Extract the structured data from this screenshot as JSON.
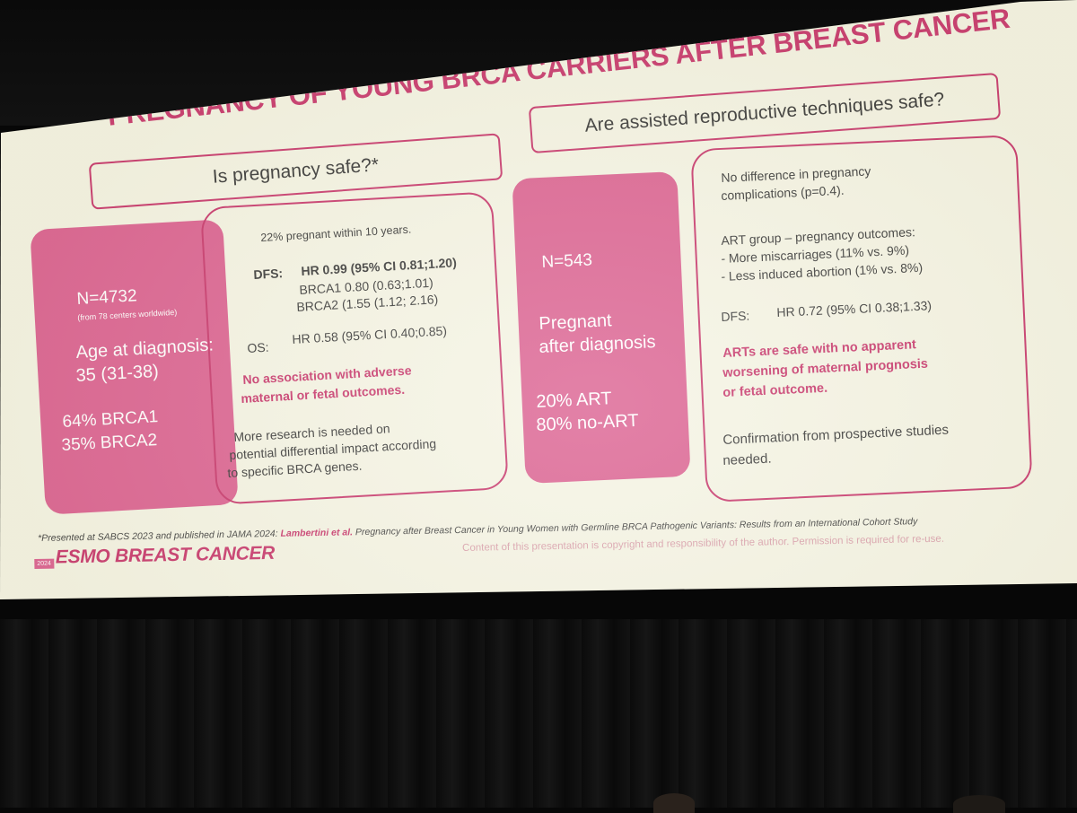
{
  "title": "PREGNANCY OF YOUNG BRCA CARRIERS AFTER BREAST CANCER",
  "left": {
    "header": "Is pregnancy safe?*",
    "cohort": {
      "n": "N=4732",
      "centers": "(from 78 centers worldwide)",
      "age_label": "Age at diagnosis:",
      "age_value": "35 (31-38)",
      "brca1": "64% BRCA1",
      "brca2": "35% BRCA2"
    },
    "findings": {
      "pregnant": "22% pregnant within 10 years.",
      "dfs_label": "DFS:",
      "dfs_hr": "HR 0.99 (95% CI 0.81;1.20)",
      "dfs_brca1": "BRCA1 0.80 (0.63;1.01)",
      "dfs_brca2": "BRCA2 (1.55 (1.12; 2.16)",
      "os_label": "OS:",
      "os_hr": "HR 0.58 (95% CI 0.40;0.85)",
      "conclusion_1": "No association with adverse",
      "conclusion_2": "maternal or fetal outcomes.",
      "research_1": "More research is needed on",
      "research_2": "potential differential impact according",
      "research_3": "to specific BRCA genes."
    }
  },
  "right": {
    "header": "Are assisted reproductive techniques safe?",
    "cohort": {
      "n": "N=543",
      "pregnant_1": "Pregnant",
      "pregnant_2": "after diagnosis",
      "art": "20% ART",
      "no_art": "80% no-ART"
    },
    "findings": {
      "no_diff_1": "No difference in pregnancy",
      "no_diff_2": "complications (p=0.4).",
      "art_group": "ART group – pregnancy outcomes:",
      "miscarriages": "- More miscarriages (11% vs. 9%)",
      "abortion": "- Less induced abortion (1% vs. 8%)",
      "dfs_label": "DFS:",
      "dfs_hr": "HR 0.72 (95% CI 0.38;1.33)",
      "safe_1": "ARTs are safe with no apparent",
      "safe_2": "worsening of maternal prognosis",
      "safe_3": "or fetal outcome.",
      "confirm_1": "Confirmation from prospective studies",
      "confirm_2": "needed."
    }
  },
  "footer": {
    "footnote_pre": "*Presented at SABCS 2023 and published in JAMA 2024: ",
    "footnote_authors": "Lambertini et al.",
    "footnote_post": " Pregnancy after Breast Cancer in Young Women with Germline BRCA Pathogenic Variants: Results from an International Cohort Study",
    "copyright": "Content of this presentation is copyright and responsibility of the author. Permission is required for re-use.",
    "logo_year": "2024",
    "logo_name": "ESMO BREAST CANCER"
  },
  "colors": {
    "accent": "#c42a63",
    "pink_fill": "#d9578a",
    "slide_bg": "#f4f3e2"
  }
}
